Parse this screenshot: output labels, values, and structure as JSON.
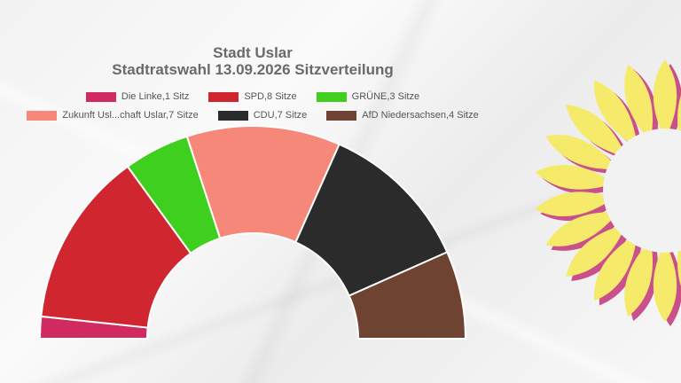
{
  "chart_data": {
    "type": "pie",
    "subtype": "semicircle-donut",
    "title": "Stadt Uslar",
    "subtitle": "Stadtratswahl 13.09.2026 Sitzverteilung",
    "legend_position": "top",
    "series": [
      {
        "name": "Die Linke",
        "label": "Die Linke,1 Sitz",
        "value": 1,
        "color": "#d12a60"
      },
      {
        "name": "SPD",
        "label": "SPD,8 Sitze",
        "value": 8,
        "color": "#d02630"
      },
      {
        "name": "GRÜNE",
        "label": "GRÜNE,3 Sitze",
        "value": 3,
        "color": "#3fcf1f"
      },
      {
        "name": "Zukunft Usl...chaft Uslar",
        "label": "Zukunft Usl...chaft Uslar,7 Sitze",
        "value": 7,
        "color": "#f6887a"
      },
      {
        "name": "CDU",
        "label": "CDU,7 Sitze",
        "value": 7,
        "color": "#2c2b2b"
      },
      {
        "name": "AfD Niedersachsen",
        "label": "AfD Niedersachsen,4 Sitze",
        "value": 4,
        "color": "#6f4332"
      }
    ]
  },
  "decoration": {
    "logo": "sunflower-icon",
    "petal_color": "#f5ea6a",
    "shadow_color": "#c9508a"
  }
}
